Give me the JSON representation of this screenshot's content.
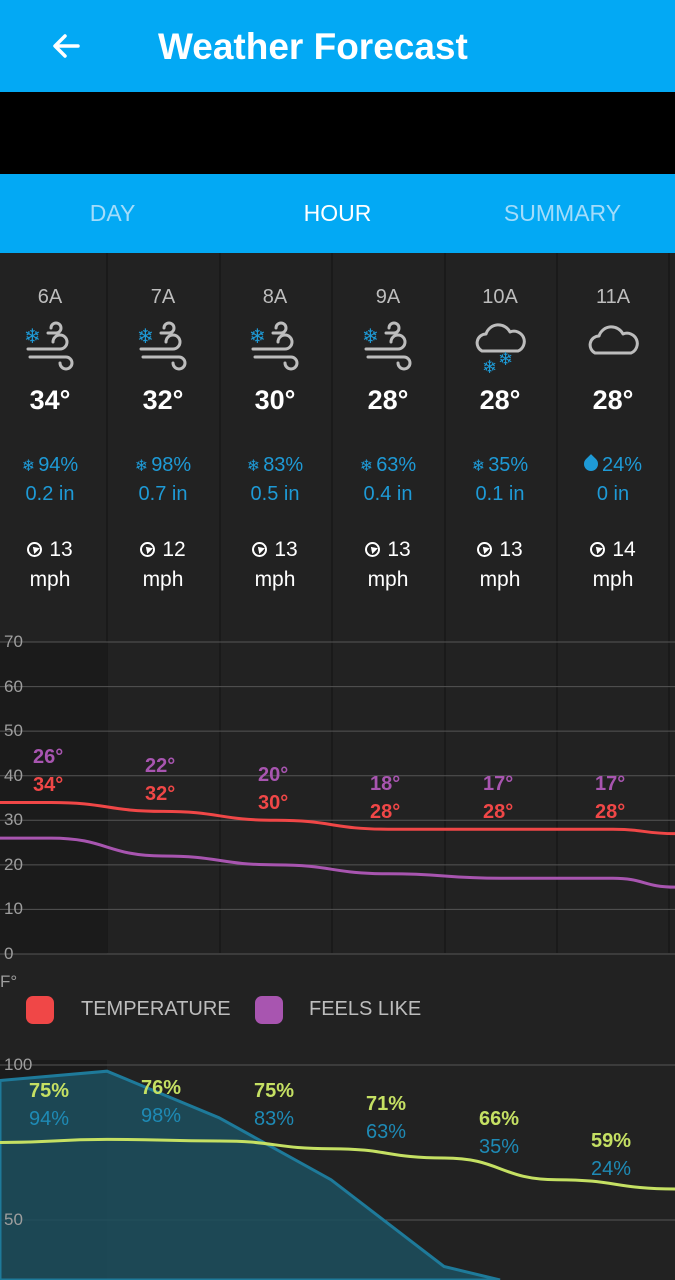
{
  "appbar": {
    "title": "Weather Forecast",
    "back_icon": "arrow-left-icon"
  },
  "tabs": [
    {
      "label": "DAY",
      "active": false
    },
    {
      "label": "HOUR",
      "active": true
    },
    {
      "label": "SUMMARY",
      "active": false
    }
  ],
  "hours": [
    {
      "time": "6A",
      "icon": "snow-wind-icon",
      "temp": "34°",
      "precip_pct": "94%",
      "precip_icon": "snowflake-icon",
      "precip_amt": "0.2 in",
      "wind_speed": "13",
      "wind_unit": "mph"
    },
    {
      "time": "7A",
      "icon": "snow-wind-icon",
      "temp": "32°",
      "precip_pct": "98%",
      "precip_icon": "snowflake-icon",
      "precip_amt": "0.7 in",
      "wind_speed": "12",
      "wind_unit": "mph"
    },
    {
      "time": "8A",
      "icon": "snow-wind-icon",
      "temp": "30°",
      "precip_pct": "83%",
      "precip_icon": "snowflake-icon",
      "precip_amt": "0.5 in",
      "wind_speed": "13",
      "wind_unit": "mph"
    },
    {
      "time": "9A",
      "icon": "snow-wind-icon",
      "temp": "28°",
      "precip_pct": "63%",
      "precip_icon": "snowflake-icon",
      "precip_amt": "0.4 in",
      "wind_speed": "13",
      "wind_unit": "mph"
    },
    {
      "time": "10A",
      "icon": "cloud-snow-icon",
      "temp": "28°",
      "precip_pct": "35%",
      "precip_icon": "snowflake-icon",
      "precip_amt": "0.1 in",
      "wind_speed": "13",
      "wind_unit": "mph"
    },
    {
      "time": "11A",
      "icon": "cloud-icon",
      "temp": "28°",
      "precip_pct": "24%",
      "precip_icon": "raindrop-icon",
      "precip_amt": "0 in",
      "wind_speed": "14",
      "wind_unit": "mph"
    }
  ],
  "temp_chart": {
    "unit_label": "F°",
    "y_ticks": [
      "70",
      "60",
      "50",
      "40",
      "30",
      "20",
      "10",
      "0"
    ],
    "temp_labels": [
      "34°",
      "32°",
      "30°",
      "28°",
      "28°",
      "28°"
    ],
    "feels_labels": [
      "26°",
      "22°",
      "20°",
      "18°",
      "17°",
      "17°"
    ],
    "legend": {
      "temperature": "TEMPERATURE",
      "feels_like": "FEELS LIKE"
    },
    "colors": {
      "temperature": "#f04747",
      "feels_like": "#a855b0"
    }
  },
  "humidity_chart": {
    "y_ticks": [
      "100",
      "50"
    ],
    "humidity_labels": [
      "75%",
      "76%",
      "75%",
      "71%",
      "66%",
      "59%"
    ],
    "precip_labels": [
      "94%",
      "98%",
      "83%",
      "63%",
      "35%",
      "24%"
    ],
    "colors": {
      "humidity": "#c5e063",
      "precip": "#1e7a9a"
    }
  },
  "chart_data": [
    {
      "type": "line",
      "categories": [
        "6A",
        "7A",
        "8A",
        "9A",
        "10A",
        "11A"
      ],
      "series": [
        {
          "name": "TEMPERATURE",
          "values": [
            34,
            32,
            30,
            28,
            28,
            28
          ]
        },
        {
          "name": "FEELS LIKE",
          "values": [
            26,
            22,
            20,
            18,
            17,
            17
          ]
        }
      ],
      "ylim": [
        0,
        70
      ],
      "ylabel": "F°",
      "grid": true,
      "legend": "bottom"
    },
    {
      "type": "area",
      "categories": [
        "6A",
        "7A",
        "8A",
        "9A",
        "10A",
        "11A"
      ],
      "series": [
        {
          "values": [
            75,
            76,
            75,
            71,
            66,
            59
          ]
        },
        {
          "values": [
            94,
            98,
            83,
            63,
            35,
            24
          ]
        }
      ],
      "ylim": [
        0,
        100
      ],
      "grid": true
    }
  ]
}
